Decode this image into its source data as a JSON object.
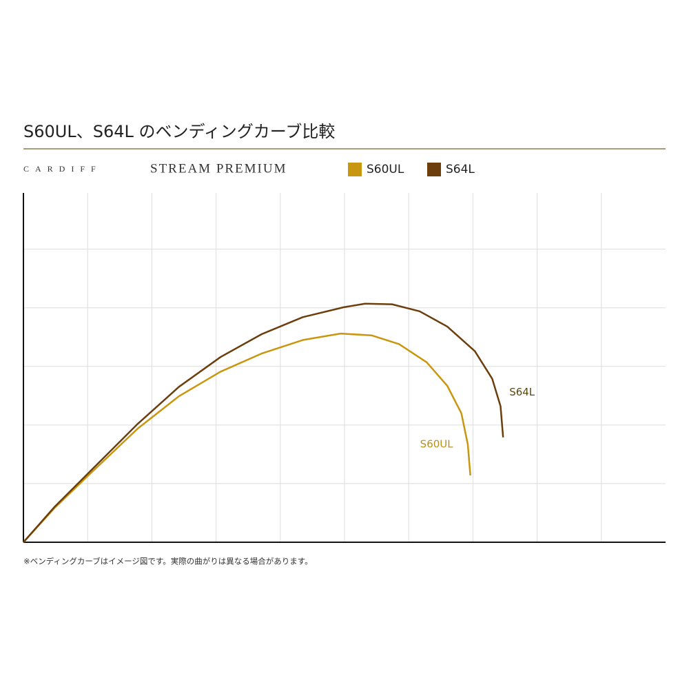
{
  "chart_data": {
    "type": "line",
    "title": "S60UL、S64L のベンディングカーブ比較",
    "brand": "CARDIFF",
    "product": "STREAM PREMIUM",
    "note": "※ベンディングカーブはイメージ図です。実際の曲がりは異なる場合があります。",
    "xlim": [
      0,
      10
    ],
    "ylim": [
      0,
      5.96
    ],
    "xticks": [
      1,
      2,
      3,
      4,
      5,
      6,
      7,
      8,
      9
    ],
    "yticks": [
      1,
      2,
      3,
      4,
      5
    ],
    "grid": true,
    "series": [
      {
        "name": "S60UL",
        "color": "#c9960f",
        "x": [
          0,
          0.49,
          1.03,
          1.78,
          2.42,
          3.07,
          3.71,
          4.35,
          4.94,
          5.42,
          5.85,
          6.28,
          6.6,
          6.82,
          6.92,
          6.96
        ],
        "values": [
          0,
          0.59,
          1.16,
          1.94,
          2.49,
          2.91,
          3.22,
          3.45,
          3.56,
          3.53,
          3.38,
          3.07,
          2.67,
          2.2,
          1.67,
          1.14
        ]
      },
      {
        "name": "S64L",
        "color": "#6b3e0c",
        "x": [
          0,
          0.49,
          1.03,
          1.78,
          2.42,
          3.07,
          3.71,
          4.35,
          4.99,
          5.32,
          5.74,
          6.17,
          6.6,
          7.03,
          7.3,
          7.43,
          7.47
        ],
        "values": [
          0,
          0.61,
          1.2,
          2.02,
          2.65,
          3.16,
          3.55,
          3.84,
          4.01,
          4.07,
          4.06,
          3.94,
          3.68,
          3.26,
          2.79,
          2.32,
          1.79
        ]
      }
    ]
  }
}
